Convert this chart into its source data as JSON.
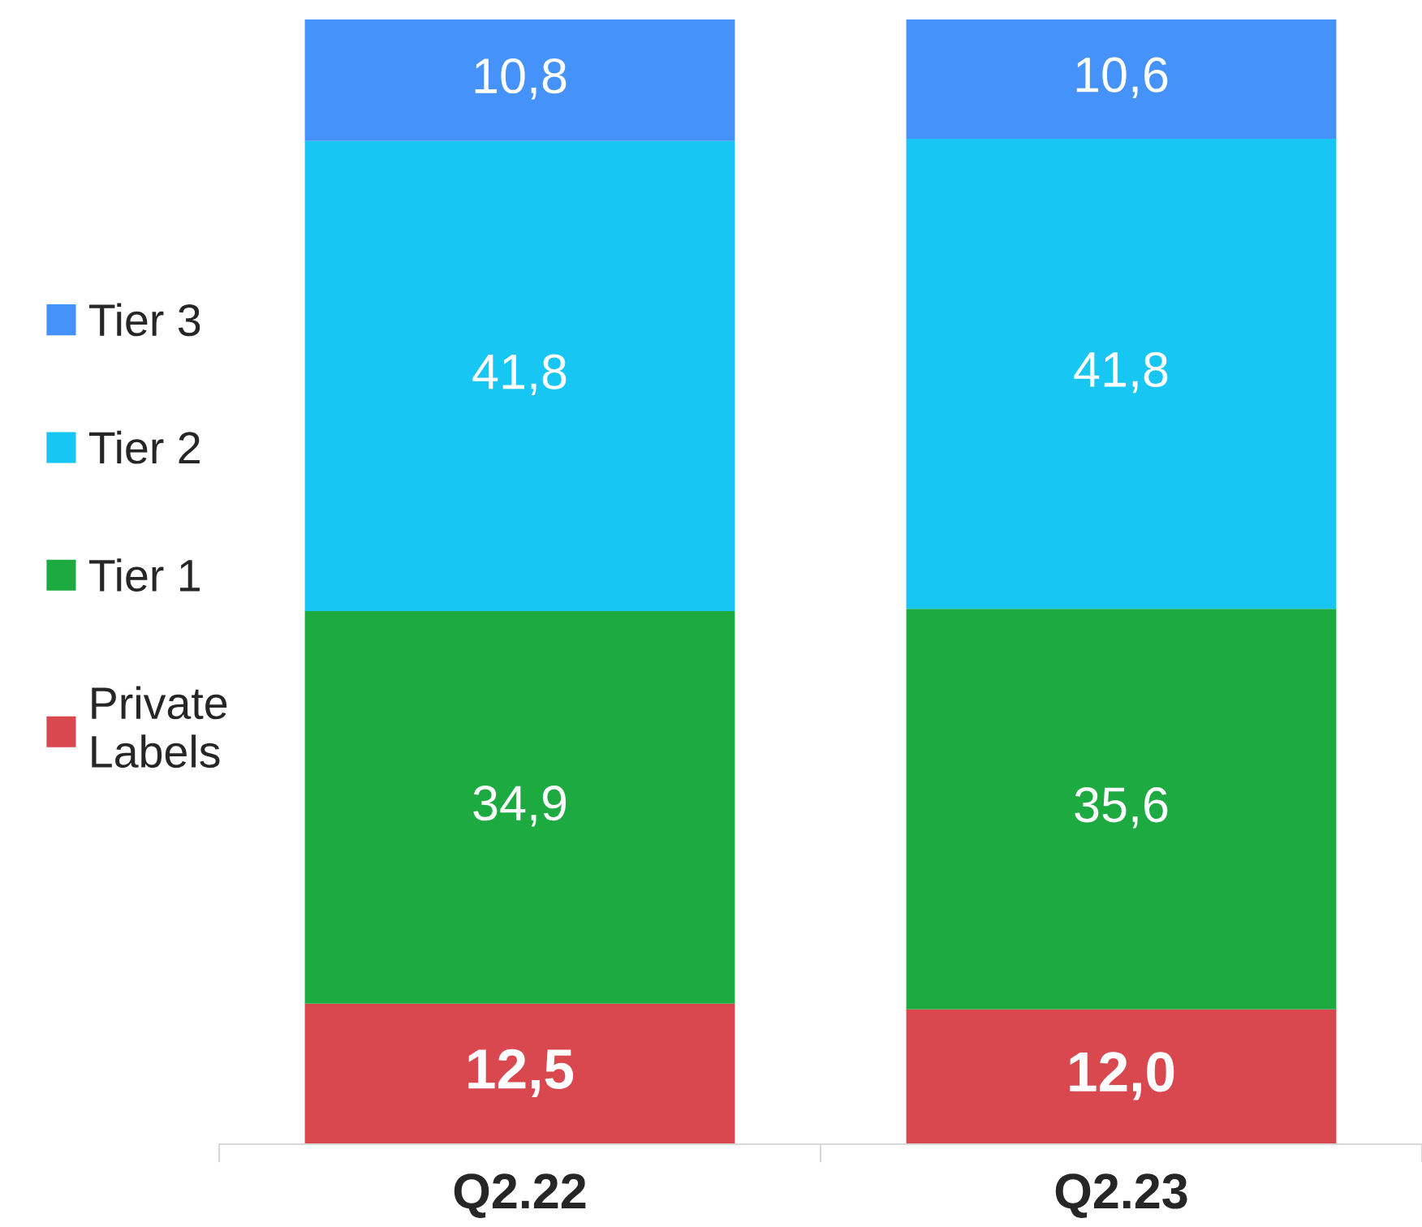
{
  "chart_data": {
    "type": "bar",
    "stacked": true,
    "categories": [
      "Q2.22",
      "Q2.23"
    ],
    "series": [
      {
        "name": "Private Labels",
        "color": "#d9474f",
        "values": [
          12.5,
          12.0
        ],
        "value_labels": [
          "12,5",
          "12,0"
        ]
      },
      {
        "name": "Tier 1",
        "color": "#1daa40",
        "values": [
          34.9,
          35.6
        ],
        "value_labels": [
          "34,9",
          "35,6"
        ]
      },
      {
        "name": "Tier 2",
        "color": "#17c6f3",
        "values": [
          41.8,
          41.8
        ],
        "value_labels": [
          "41,8",
          "41,8"
        ]
      },
      {
        "name": "Tier 3",
        "color": "#4592fb",
        "values": [
          10.8,
          10.6
        ],
        "value_labels": [
          "10,8",
          "10,6"
        ]
      }
    ],
    "legend": "left",
    "grid": false
  }
}
